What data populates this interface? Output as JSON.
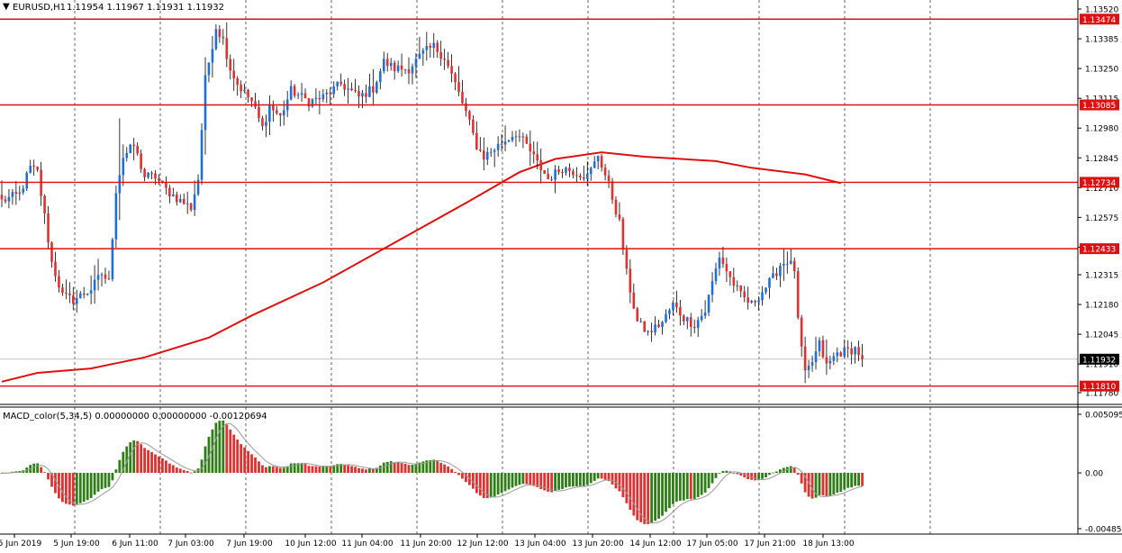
{
  "header": {
    "symbol_label": "EURUSD,H1",
    "ohlc": "1.11954 1.11967 1.11931 1.11932",
    "dropdown_glyph": "▼"
  },
  "indicator": {
    "label": "MACD_color(5,34,5) 0.00000000 0.00000000 -0.00120694"
  },
  "colors": {
    "background": "#ffffff",
    "bull_candle": "#1e6fd9",
    "bear_candle": "#e03030",
    "wick": "#000000",
    "hline": "#dd1111",
    "ma_line": "#dd1111",
    "hist_pos_rising": "#2e7d16",
    "hist_pos_falling": "#e03030",
    "signal_line": "#999999",
    "grid": "#000000",
    "price_badge_current": "#000000",
    "price_badge_level": "#dd1111"
  },
  "chart_data": [
    {
      "type": "candlestick",
      "title": "EURUSD,H1",
      "y_axis_ticks": [
        "1.13520",
        "1.13385",
        "1.13250",
        "1.13115",
        "1.12980",
        "1.12845",
        "1.12710",
        "1.12575",
        "1.12440",
        "1.12315",
        "1.12180",
        "1.12045",
        "1.11910",
        "1.11780"
      ],
      "ylim": [
        1.1178,
        1.1352
      ],
      "x_axis_ticks": [
        "5 Jun 2019",
        "5 Jun 19:00",
        "6 Jun 11:00",
        "7 Jun 03:00",
        "7 Jun 19:00",
        "10 Jun 12:00",
        "11 Jun 04:00",
        "11 Jun 20:00",
        "12 Jun 12:00",
        "13 Jun 04:00",
        "13 Jun 20:00",
        "14 Jun 12:00",
        "17 Jun 05:00",
        "17 Jun 21:00",
        "18 Jun 13:00"
      ],
      "grid": "vertical dotted",
      "horizontal_levels": [
        "1.13474",
        "1.13085",
        "1.12734",
        "1.12433",
        "1.11810"
      ],
      "current_price": "1.11932",
      "anchors": [
        [
          0,
          1.1265
        ],
        [
          5,
          1.1268
        ],
        [
          8,
          1.128
        ],
        [
          10,
          1.1278
        ],
        [
          12,
          1.1258
        ],
        [
          14,
          1.1237
        ],
        [
          17,
          1.1222
        ],
        [
          20,
          1.122
        ],
        [
          25,
          1.1225
        ],
        [
          28,
          1.1232
        ],
        [
          30,
          1.1228
        ],
        [
          32,
          1.127
        ],
        [
          34,
          1.1285
        ],
        [
          37,
          1.129
        ],
        [
          40,
          1.1276
        ],
        [
          43,
          1.1276
        ],
        [
          46,
          1.127
        ],
        [
          50,
          1.1265
        ],
        [
          53,
          1.1262
        ],
        [
          55,
          1.1275
        ],
        [
          57,
          1.132
        ],
        [
          60,
          1.1344
        ],
        [
          62,
          1.1338
        ],
        [
          64,
          1.1325
        ],
        [
          66,
          1.1318
        ],
        [
          70,
          1.131
        ],
        [
          73,
          1.1298
        ],
        [
          75,
          1.1308
        ],
        [
          78,
          1.1303
        ],
        [
          81,
          1.1315
        ],
        [
          86,
          1.131
        ],
        [
          90,
          1.1312
        ],
        [
          95,
          1.1318
        ],
        [
          100,
          1.1312
        ],
        [
          104,
          1.1316
        ],
        [
          107,
          1.1328
        ],
        [
          110,
          1.1325
        ],
        [
          114,
          1.1325
        ],
        [
          118,
          1.1332
        ],
        [
          121,
          1.1335
        ],
        [
          124,
          1.133
        ],
        [
          127,
          1.1318
        ],
        [
          130,
          1.1305
        ],
        [
          133,
          1.129
        ],
        [
          135,
          1.1285
        ],
        [
          139,
          1.129
        ],
        [
          144,
          1.1296
        ],
        [
          147,
          1.129
        ],
        [
          150,
          1.1282
        ],
        [
          153,
          1.1275
        ],
        [
          157,
          1.128
        ],
        [
          161,
          1.1278
        ],
        [
          164,
          1.1276
        ],
        [
          166,
          1.1282
        ],
        [
          167,
          1.1286
        ],
        [
          170,
          1.1272
        ],
        [
          173,
          1.1255
        ],
        [
          175,
          1.1232
        ],
        [
          178,
          1.121
        ],
        [
          181,
          1.1205
        ],
        [
          185,
          1.121
        ],
        [
          188,
          1.1218
        ],
        [
          191,
          1.1212
        ],
        [
          194,
          1.1209
        ],
        [
          197,
          1.1215
        ],
        [
          199,
          1.1228
        ],
        [
          201,
          1.124
        ],
        [
          204,
          1.123
        ],
        [
          207,
          1.1222
        ],
        [
          210,
          1.1218
        ],
        [
          213,
          1.1224
        ],
        [
          216,
          1.123
        ],
        [
          218,
          1.1236
        ],
        [
          220,
          1.1238
        ],
        [
          222,
          1.1234
        ],
        [
          223,
          1.121
        ],
        [
          225,
          1.1186
        ],
        [
          227,
          1.1192
        ],
        [
          229,
          1.12
        ],
        [
          231,
          1.119
        ],
        [
          234,
          1.1196
        ],
        [
          237,
          1.1197
        ],
        [
          239,
          1.1198
        ],
        [
          241,
          1.1194
        ]
      ],
      "moving_average": [
        [
          0,
          1.1183
        ],
        [
          10,
          1.1187
        ],
        [
          25,
          1.1189
        ],
        [
          40,
          1.1194
        ],
        [
          58,
          1.1203
        ],
        [
          70,
          1.1213
        ],
        [
          90,
          1.1228
        ],
        [
          110,
          1.1246
        ],
        [
          130,
          1.1264
        ],
        [
          145,
          1.1278
        ],
        [
          155,
          1.1284
        ],
        [
          168,
          1.1287
        ],
        [
          180,
          1.1285
        ],
        [
          200,
          1.1283
        ],
        [
          210,
          1.128
        ],
        [
          225,
          1.1277
        ],
        [
          235,
          1.1273
        ]
      ]
    },
    {
      "type": "histogram",
      "title": "MACD_color(5,34,5)",
      "y_axis_ticks": [
        "0.0050954",
        "0.00",
        "-0.0048560"
      ],
      "ylim": [
        -0.004856,
        0.0050954
      ],
      "note": "bars = MACD(5,34) of close series, signal = SMA(5) of MACD"
    }
  ]
}
